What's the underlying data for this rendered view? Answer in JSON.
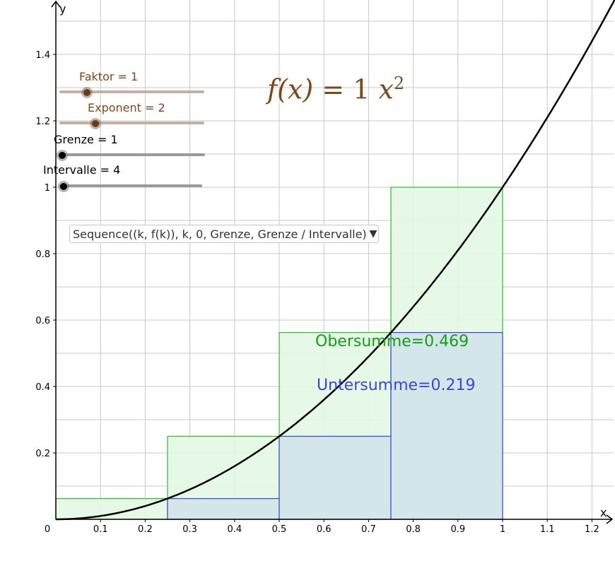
{
  "colors": {
    "curve": "#000000",
    "upper_fill": "#e3f7e3",
    "upper_stroke": "#2dbd2d",
    "lower_fill": "#d4e6ea",
    "lower_stroke": "#3a47d6",
    "faktor_color": "#7a4a1e",
    "exponent_color": "#7a4a1e",
    "grid": "#c8c8c8",
    "obersumme_text": "#14a014",
    "untersumme_text": "#3a47d6"
  },
  "sliders": {
    "faktor": {
      "label": "Faktor = 1",
      "value": 1
    },
    "exponent": {
      "label": "Exponent = 2",
      "value": 2
    },
    "grenze": {
      "label": "Grenze = 1",
      "value": 1
    },
    "intervalle": {
      "label": "Intervalle = 4",
      "value": 4
    }
  },
  "formula": {
    "lhs": "f(x) = ",
    "coef": "1",
    "var": "x",
    "exp": "2"
  },
  "dropdown": {
    "selected": "Sequence((k, f(k)), k, 0, Grenze, Grenze / Intervalle)"
  },
  "sums": {
    "obersumme": "Obersumme=0.469",
    "untersumme": "Untersumme=0.219"
  },
  "chart_data": {
    "type": "area",
    "function": "f(x) = 1 x^2",
    "xlabel": "x",
    "ylabel": "y",
    "xlim": [
      0,
      1.25
    ],
    "ylim": [
      0,
      1.55
    ],
    "xticks": [
      0,
      0.1,
      0.2,
      0.3,
      0.4,
      0.5,
      0.6,
      0.7,
      0.8,
      0.9,
      1,
      1.1,
      1.2
    ],
    "xtick_labels": [
      "0",
      "0.1",
      "0.2",
      "0.3",
      "0.4",
      "0.5",
      "0.6",
      "0.7",
      "0.8",
      "0.9",
      "1",
      "1.1",
      "1.2"
    ],
    "yticks": [
      0.2,
      0.4,
      0.6,
      0.8,
      1,
      1.2,
      1.4
    ],
    "ytick_labels": [
      "0.2",
      "0.4",
      "0.6",
      "0.8",
      "1",
      "1.2",
      "1.4"
    ],
    "upper_rectangles": [
      {
        "x0": 0,
        "x1": 0.25,
        "height": 0.0625
      },
      {
        "x0": 0.25,
        "x1": 0.5,
        "height": 0.25
      },
      {
        "x0": 0.5,
        "x1": 0.75,
        "height": 0.5625
      },
      {
        "x0": 0.75,
        "x1": 1,
        "height": 1
      }
    ],
    "lower_rectangles": [
      {
        "x0": 0,
        "x1": 0.25,
        "height": 0
      },
      {
        "x0": 0.25,
        "x1": 0.5,
        "height": 0.0625
      },
      {
        "x0": 0.5,
        "x1": 0.75,
        "height": 0.25
      },
      {
        "x0": 0.75,
        "x1": 1,
        "height": 0.5625
      }
    ],
    "obersumme": 0.469,
    "untersumme": 0.219,
    "grid": true
  }
}
